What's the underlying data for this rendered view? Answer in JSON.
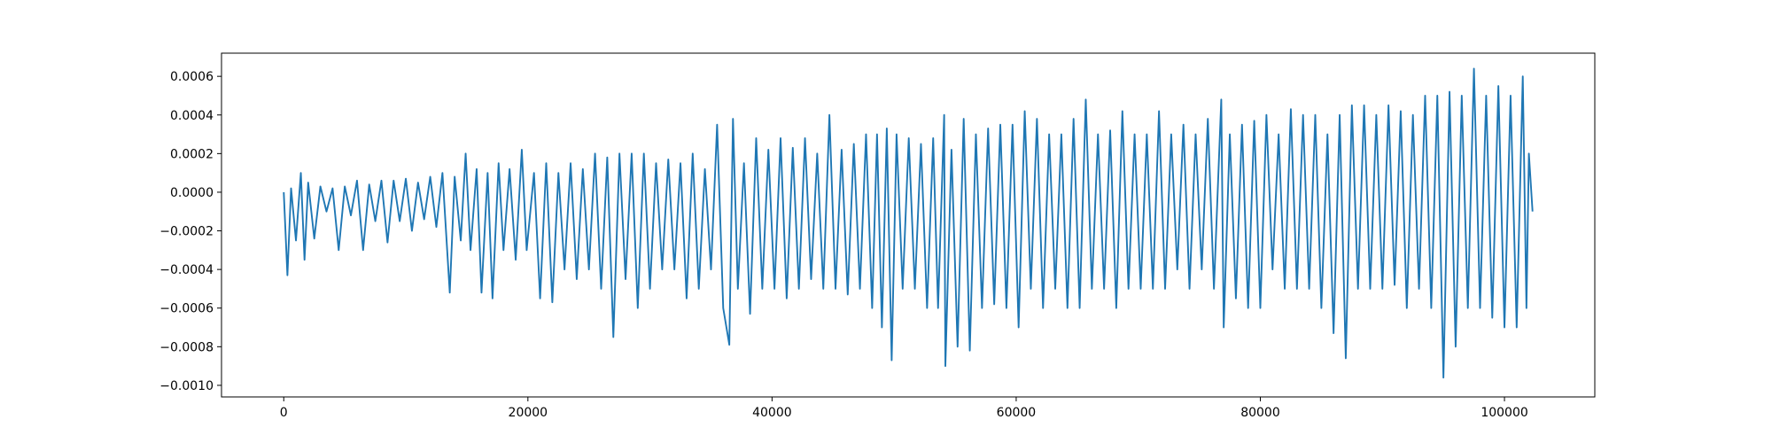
{
  "chart_data": {
    "type": "line",
    "x": [
      0,
      300,
      600,
      1000,
      1400,
      1700,
      2000,
      2500,
      3000,
      3500,
      4000,
      4500,
      5000,
      5500,
      6000,
      6500,
      7000,
      7500,
      8000,
      8500,
      9000,
      9500,
      10000,
      10500,
      11000,
      11500,
      12000,
      12500,
      13000,
      13600,
      14000,
      14500,
      14900,
      15300,
      15800,
      16200,
      16700,
      17100,
      17600,
      18000,
      18500,
      19000,
      19500,
      19900,
      20500,
      21000,
      21500,
      22000,
      22500,
      23000,
      23500,
      24000,
      24500,
      25000,
      25500,
      26000,
      26500,
      27000,
      27500,
      28000,
      28500,
      29000,
      29500,
      30000,
      30500,
      31000,
      31500,
      32000,
      32500,
      33000,
      33500,
      34000,
      34500,
      35000,
      35500,
      36000,
      36500,
      36800,
      37200,
      37700,
      38200,
      38700,
      39200,
      39700,
      40200,
      40700,
      41200,
      41700,
      42200,
      42700,
      43200,
      43700,
      44200,
      44700,
      45200,
      45700,
      46200,
      46700,
      47200,
      47700,
      48200,
      48600,
      49000,
      49400,
      49800,
      50200,
      50700,
      51200,
      51700,
      52200,
      52700,
      53200,
      53600,
      54100,
      54200,
      54700,
      55200,
      55700,
      56200,
      56700,
      57200,
      57700,
      58200,
      58700,
      59200,
      59700,
      60200,
      60700,
      61200,
      61700,
      62200,
      62700,
      63200,
      63700,
      64200,
      64700,
      65200,
      65700,
      66200,
      66700,
      67200,
      67700,
      68200,
      68700,
      69200,
      69700,
      70200,
      70700,
      71200,
      71700,
      72200,
      72700,
      73200,
      73700,
      74200,
      74700,
      75200,
      75700,
      76200,
      76800,
      77000,
      77500,
      78000,
      78500,
      79000,
      79500,
      80000,
      80500,
      81000,
      81500,
      82000,
      82500,
      83000,
      83500,
      84000,
      84500,
      85000,
      85500,
      86000,
      86500,
      87000,
      87500,
      88000,
      88500,
      89000,
      89500,
      90000,
      90500,
      91000,
      91500,
      92000,
      92500,
      93000,
      93500,
      94000,
      94500,
      95000,
      95500,
      96000,
      96500,
      97000,
      97500,
      98000,
      98500,
      99000,
      99500,
      100000,
      100500,
      101000,
      101500,
      101800,
      102000,
      102300
    ],
    "series": [
      {
        "color": "#1f77b4",
        "values": [
          0,
          -0.00043,
          2e-05,
          -0.00025,
          0.0001,
          -0.00035,
          5e-05,
          -0.00024,
          3e-05,
          -0.0001,
          2e-05,
          -0.0003,
          3e-05,
          -0.00012,
          6e-05,
          -0.0003,
          4e-05,
          -0.00015,
          6e-05,
          -0.00026,
          6e-05,
          -0.00015,
          7e-05,
          -0.0002,
          5e-05,
          -0.00014,
          8e-05,
          -0.00018,
          0.0001,
          -0.00052,
          8e-05,
          -0.00025,
          0.0002,
          -0.0003,
          0.00012,
          -0.00052,
          0.0001,
          -0.00055,
          0.00015,
          -0.0003,
          0.00012,
          -0.00035,
          0.00022,
          -0.0003,
          0.0001,
          -0.00055,
          0.00015,
          -0.00057,
          0.0001,
          -0.0004,
          0.00015,
          -0.00045,
          0.00012,
          -0.0004,
          0.0002,
          -0.0005,
          0.00018,
          -0.00075,
          0.0002,
          -0.00045,
          0.0002,
          -0.0006,
          0.0002,
          -0.0005,
          0.00015,
          -0.0004,
          0.00017,
          -0.0004,
          0.00015,
          -0.00055,
          0.0002,
          -0.0005,
          0.00012,
          -0.0004,
          0.00035,
          -0.0006,
          -0.00079,
          0.00038,
          -0.0005,
          0.00015,
          -0.00063,
          0.00028,
          -0.0005,
          0.00022,
          -0.0005,
          0.00028,
          -0.00055,
          0.00023,
          -0.0005,
          0.00028,
          -0.00045,
          0.0002,
          -0.0005,
          0.0004,
          -0.0005,
          0.00022,
          -0.00053,
          0.00025,
          -0.0005,
          0.0003,
          -0.0006,
          0.0003,
          -0.0007,
          0.00033,
          -0.00087,
          0.0003,
          -0.0005,
          0.00028,
          -0.0005,
          0.00025,
          -0.0006,
          0.00028,
          -0.0006,
          0.0004,
          -0.0009,
          0.00022,
          -0.0008,
          0.00038,
          -0.00082,
          0.0003,
          -0.0006,
          0.00033,
          -0.00058,
          0.00035,
          -0.0006,
          0.00035,
          -0.0007,
          0.00042,
          -0.0005,
          0.00038,
          -0.0006,
          0.0003,
          -0.0005,
          0.0003,
          -0.0006,
          0.00038,
          -0.0006,
          0.00048,
          -0.0005,
          0.0003,
          -0.0005,
          0.00032,
          -0.0006,
          0.00042,
          -0.0005,
          0.0003,
          -0.0005,
          0.0003,
          -0.0005,
          0.00042,
          -0.0005,
          0.0003,
          -0.0004,
          0.00035,
          -0.0005,
          0.0003,
          -0.0004,
          0.00038,
          -0.0005,
          0.00048,
          -0.0007,
          0.0003,
          -0.00055,
          0.00035,
          -0.0006,
          0.00037,
          -0.0006,
          0.0004,
          -0.0004,
          0.0003,
          -0.0005,
          0.00043,
          -0.0005,
          0.0004,
          -0.0005,
          0.0004,
          -0.0006,
          0.0003,
          -0.00073,
          0.0004,
          -0.00086,
          0.00045,
          -0.0005,
          0.00045,
          -0.0005,
          0.0004,
          -0.0005,
          0.00045,
          -0.00048,
          0.00042,
          -0.0006,
          0.0004,
          -0.0005,
          0.0005,
          -0.0006,
          0.0005,
          -0.00096,
          0.00052,
          -0.0008,
          0.0005,
          -0.0006,
          0.00064,
          -0.0006,
          0.0005,
          -0.00065,
          0.00055,
          -0.0007,
          0.0005,
          -0.0007,
          0.0006,
          -0.0006,
          0.0002,
          -0.0001
        ]
      }
    ],
    "xlim": [
      -5100,
      107400
    ],
    "xticks": [
      0,
      20000,
      40000,
      60000,
      80000,
      100000
    ],
    "ylim": [
      -0.00106,
      0.00072
    ],
    "yticks": [
      {
        "value": -0.001,
        "label": "−0.0010"
      },
      {
        "value": -0.0008,
        "label": "−0.0008"
      },
      {
        "value": -0.0006,
        "label": "−0.0006"
      },
      {
        "value": -0.0004,
        "label": "−0.0004"
      },
      {
        "value": -0.0002,
        "label": "−0.0002"
      },
      {
        "value": 0,
        "label": "0.0000"
      },
      {
        "value": 0.0002,
        "label": "0.0002"
      },
      {
        "value": 0.0004,
        "label": "0.0004"
      },
      {
        "value": 0.0006,
        "label": "0.0006"
      }
    ],
    "grid": false
  }
}
